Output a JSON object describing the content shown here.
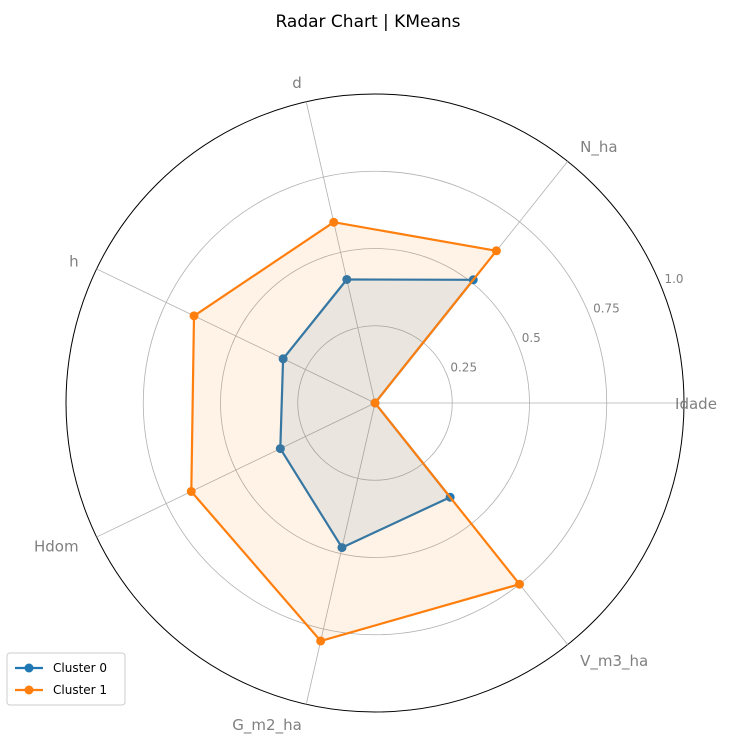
{
  "chart_data": {
    "type": "radar",
    "title": "Radar Chart | KMeans",
    "axes": [
      "Idade",
      "N_ha",
      "d",
      "h",
      "Hdom",
      "G_m2_ha",
      "V_m3_ha"
    ],
    "rlim": [
      0,
      1.0
    ],
    "rticks": [
      0.25,
      0.5,
      0.75,
      1.0
    ],
    "rtick_labels": [
      "0.25",
      "0.5",
      "0.75",
      "1.0"
    ],
    "grid": true,
    "legend": "lower-left",
    "series": [
      {
        "name": "Cluster 0",
        "color": "#1f77b4",
        "fill_opacity": 0.1,
        "values": [
          0.0,
          0.51,
          0.41,
          0.33,
          0.34,
          0.48,
          0.39
        ]
      },
      {
        "name": "Cluster 1",
        "color": "#ff7f0e",
        "fill_opacity": 0.1,
        "values": [
          0.0,
          0.63,
          0.6,
          0.65,
          0.66,
          0.79,
          0.75
        ]
      }
    ]
  }
}
